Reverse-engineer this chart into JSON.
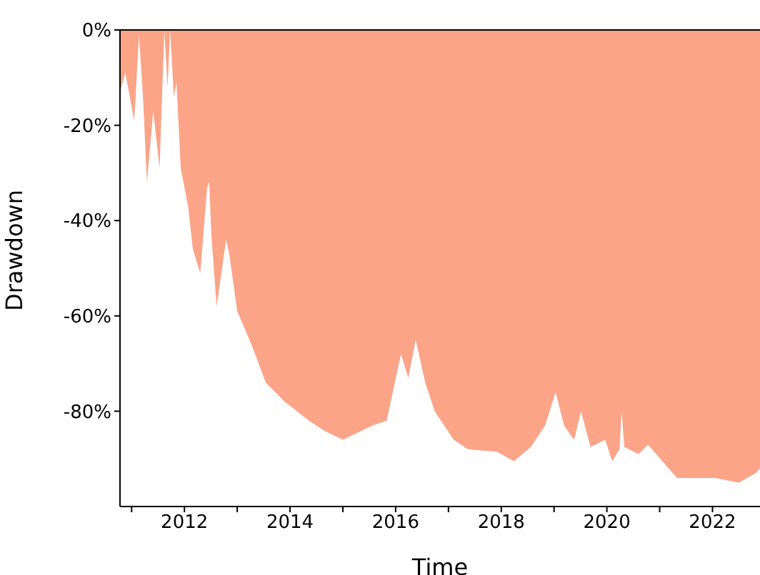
{
  "chart_data": {
    "type": "area",
    "xlabel": "Time",
    "ylabel": "Drawdown",
    "x": [
      2010.78,
      2010.88,
      2011.05,
      2011.14,
      2011.22,
      2011.29,
      2011.41,
      2011.53,
      2011.62,
      2011.68,
      2011.73,
      2011.8,
      2011.85,
      2011.93,
      2012.07,
      2012.16,
      2012.3,
      2012.43,
      2012.47,
      2012.51,
      2012.61,
      2012.79,
      2012.85,
      2013.0,
      2013.27,
      2013.54,
      2013.9,
      2014.36,
      2014.63,
      2015.0,
      2015.56,
      2015.83,
      2016.1,
      2016.24,
      2016.38,
      2016.56,
      2016.74,
      2017.1,
      2017.37,
      2017.92,
      2018.24,
      2018.56,
      2018.83,
      2019.03,
      2019.19,
      2019.38,
      2019.51,
      2019.69,
      2019.97,
      2020.1,
      2020.24,
      2020.28,
      2020.33,
      2020.6,
      2020.78,
      2021.05,
      2021.33,
      2022.05,
      2022.5,
      2022.82,
      2022.9
    ],
    "series": [
      {
        "color": "#fa8a65",
        "values": [
          -13,
          -9,
          -19,
          -1,
          -15,
          -32,
          -17,
          -29,
          0,
          -12,
          0,
          -14,
          -11,
          -29,
          -37,
          -46,
          -51,
          -33,
          -32,
          -43,
          -58,
          -44,
          -47,
          -59,
          -66,
          -74,
          -78,
          -82,
          -84,
          -86,
          -83,
          -82,
          -68,
          -73,
          -65,
          -74,
          -80,
          -86,
          -88,
          -88.5,
          -90.5,
          -87.5,
          -83,
          -76,
          -83,
          -86,
          -80,
          -87.5,
          -86,
          -90.5,
          -88,
          -80,
          -87.5,
          -89,
          -87,
          -90.5,
          -94,
          -94,
          -95,
          -93,
          -92
        ]
      }
    ],
    "xlim": [
      2010.78,
      2022.9
    ],
    "xticks": [
      {
        "value": 2011,
        "label": null
      },
      2012,
      {
        "value": 2013,
        "label": null
      },
      2014,
      {
        "value": 2015,
        "label": null
      },
      2016,
      {
        "value": 2017,
        "label": null
      },
      2018,
      {
        "value": 2019,
        "label": null
      },
      2020,
      {
        "value": 2021,
        "label": null
      },
      2022
    ],
    "ylim": [
      -100,
      0
    ],
    "yticks": [
      {
        "value": 0,
        "label": "0%"
      },
      {
        "value": -20,
        "label": "-20%"
      },
      {
        "value": -40,
        "label": "-40%"
      },
      {
        "value": -60,
        "label": "-60%"
      },
      {
        "value": -80,
        "label": "-80%"
      }
    ],
    "grid": false,
    "legend": false
  }
}
